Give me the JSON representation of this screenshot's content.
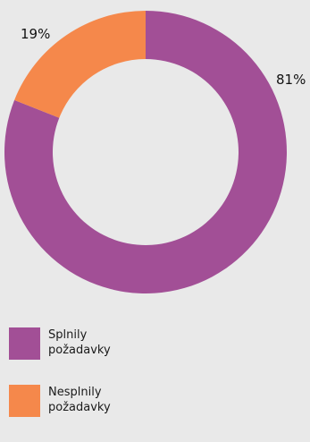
{
  "chart_data": {
    "type": "pie",
    "donut": true,
    "title": "",
    "categories": [
      "Splnily požadavky",
      "Nesplnily požadavky"
    ],
    "values": [
      81,
      19
    ],
    "value_labels": [
      "81%",
      "19%"
    ],
    "colors": [
      "#a24f96",
      "#f5884b"
    ],
    "legend": {
      "position": "bottom-left",
      "items": [
        {
          "label_line1": "Splnily",
          "label_line2": "požadavky"
        },
        {
          "label_line1": "Nesplnily",
          "label_line2": "požadavky"
        }
      ]
    }
  }
}
